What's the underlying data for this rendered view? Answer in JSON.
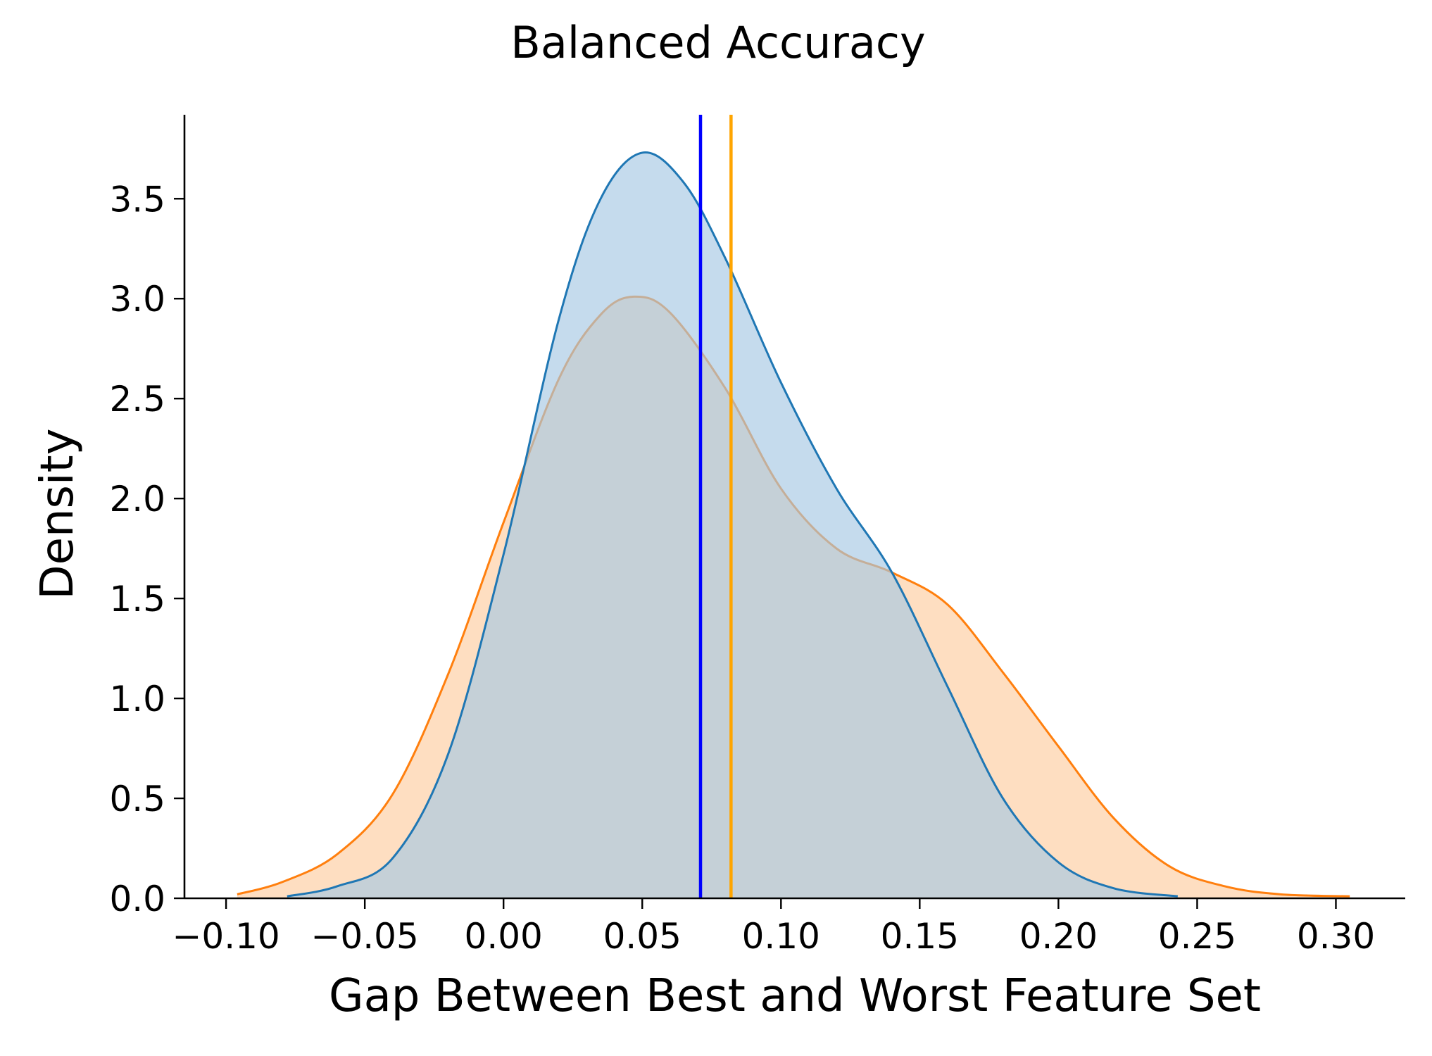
{
  "chart_data": {
    "type": "area",
    "title": "Balanced Accuracy",
    "xlabel": "Gap Between Best and Worst Feature Set",
    "ylabel": "Density",
    "xlim": [
      -0.115,
      0.325
    ],
    "ylim": [
      0,
      3.92
    ],
    "x_ticks": [
      -0.1,
      -0.05,
      0.0,
      0.05,
      0.1,
      0.15,
      0.2,
      0.25,
      0.3
    ],
    "x_tick_labels": [
      "−0.10",
      "−0.05",
      "0.00",
      "0.05",
      "0.10",
      "0.15",
      "0.20",
      "0.25",
      "0.30"
    ],
    "y_ticks": [
      0.0,
      0.5,
      1.0,
      1.5,
      2.0,
      2.5,
      3.0,
      3.5
    ],
    "y_tick_labels": [
      "0.0",
      "0.5",
      "1.0",
      "1.5",
      "2.0",
      "2.5",
      "3.0",
      "3.5"
    ],
    "grid": false,
    "legend": null,
    "series": [
      {
        "color": "#ff7f0e",
        "fill": "#fdd3ac",
        "fill_opacity": 0.75,
        "x": [
          -0.096,
          -0.08,
          -0.06,
          -0.04,
          -0.02,
          0.0,
          0.02,
          0.035,
          0.047,
          0.06,
          0.08,
          0.1,
          0.12,
          0.14,
          0.16,
          0.18,
          0.2,
          0.22,
          0.24,
          0.26,
          0.28,
          0.305
        ],
        "y": [
          0.02,
          0.08,
          0.22,
          0.52,
          1.12,
          1.88,
          2.6,
          2.92,
          3.01,
          2.93,
          2.55,
          2.05,
          1.75,
          1.63,
          1.47,
          1.13,
          0.76,
          0.4,
          0.16,
          0.06,
          0.02,
          0.01
        ]
      },
      {
        "color": "#1f77b4",
        "fill": "#a6c7e4",
        "fill_opacity": 0.65,
        "x": [
          -0.078,
          -0.06,
          -0.04,
          -0.02,
          0.0,
          0.02,
          0.035,
          0.05,
          0.065,
          0.08,
          0.1,
          0.12,
          0.14,
          0.16,
          0.18,
          0.2,
          0.22,
          0.243
        ],
        "y": [
          0.01,
          0.06,
          0.2,
          0.72,
          1.72,
          2.9,
          3.5,
          3.73,
          3.58,
          3.2,
          2.58,
          2.05,
          1.63,
          1.06,
          0.5,
          0.18,
          0.05,
          0.01
        ]
      }
    ],
    "vlines": [
      {
        "x": 0.071,
        "color": "#0000ff"
      },
      {
        "x": 0.082,
        "color": "#ffa500"
      }
    ]
  }
}
